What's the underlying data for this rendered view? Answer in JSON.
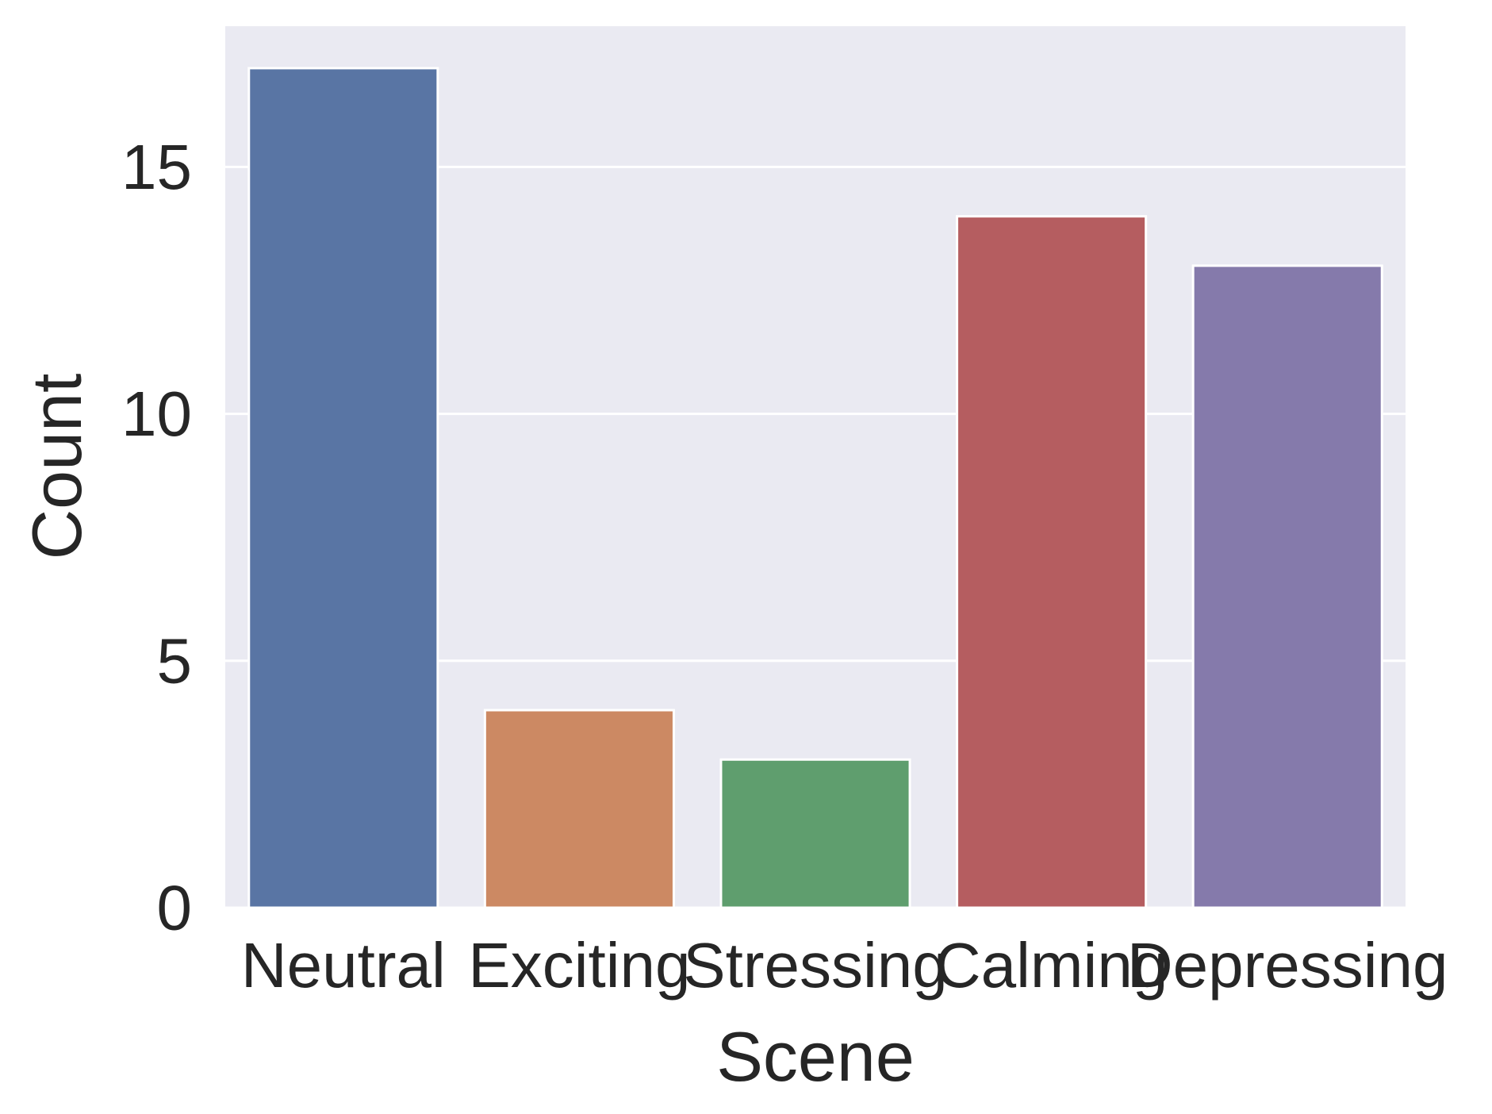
{
  "chart_data": {
    "type": "bar",
    "title": "",
    "xlabel": "Scene",
    "ylabel": "Count",
    "categories": [
      "Neutral",
      "Exciting",
      "Stressing",
      "Calming",
      "Depressing"
    ],
    "values": [
      17,
      4,
      3,
      14,
      13
    ],
    "colors": [
      "#5975a4",
      "#cc8963",
      "#5f9e6e",
      "#b55d60",
      "#857aab"
    ],
    "yticks": [
      0,
      5,
      10,
      15
    ],
    "ylim": [
      0,
      17.85
    ],
    "grid": true,
    "background": "#eaeaf2",
    "grid_color": "#ffffff"
  }
}
